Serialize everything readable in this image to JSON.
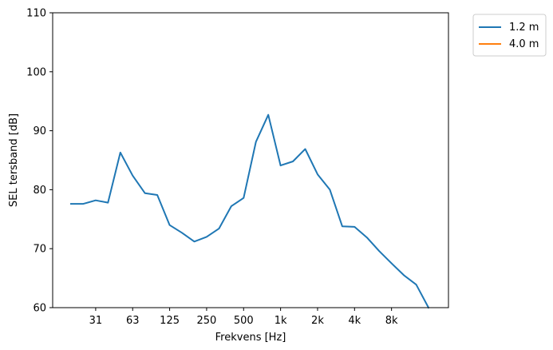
{
  "chart_data": {
    "type": "line",
    "xlabel": "Frekvens [Hz]",
    "ylabel": "SEL tersband [dB]",
    "x_tick_labels": [
      "31",
      "63",
      "125",
      "250",
      "500",
      "1k",
      "2k",
      "4k",
      "8k"
    ],
    "x_scale": "third-octave bands",
    "ylim": [
      60,
      110
    ],
    "y_ticks": [
      60,
      70,
      80,
      90,
      100,
      110
    ],
    "grid": false,
    "legend_position": "outside top-right",
    "series": [
      {
        "name": "1.2 m",
        "color": "#1f77b4",
        "x": [
          20,
          25,
          31.5,
          40,
          50,
          63,
          80,
          100,
          125,
          160,
          200,
          250,
          315,
          400,
          500,
          630,
          800,
          1000,
          1250,
          1600,
          2000,
          2500,
          3150,
          4000,
          5000,
          6300,
          8000,
          10000,
          12500,
          16000
        ],
        "values": [
          77.6,
          77.6,
          78.2,
          77.8,
          86.3,
          82.4,
          79.4,
          79.1,
          74.0,
          72.7,
          71.2,
          72.0,
          73.4,
          77.2,
          78.6,
          88.1,
          92.7,
          84.1,
          84.8,
          86.9,
          82.6,
          80.0,
          73.8,
          73.7,
          71.9,
          69.6,
          67.5,
          65.5,
          63.9,
          59.6
        ]
      },
      {
        "name": "4.0 m",
        "color": "#ff7f0e",
        "x": [],
        "values": []
      }
    ]
  }
}
